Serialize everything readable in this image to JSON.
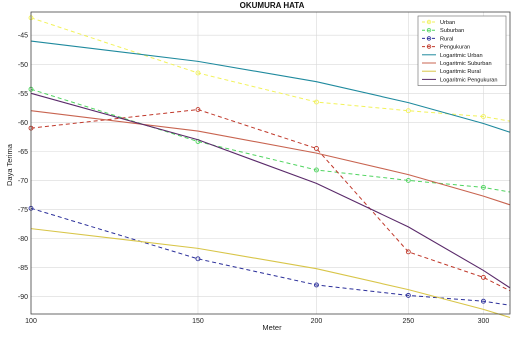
{
  "chart_data": {
    "type": "line",
    "title": "OKUMURA HATA",
    "xlabel": "Meter",
    "ylabel": "Daya Terima",
    "xlim": [
      100,
      320
    ],
    "ylim": [
      -93,
      -41
    ],
    "x_scale": "log",
    "grid": true,
    "legend_position": "top-right",
    "x_ticks": [
      100,
      150,
      200,
      250,
      300
    ],
    "x_tick_labels": [
      "100",
      "150",
      "200",
      "250",
      "300"
    ],
    "y_ticks": [
      -45,
      -50,
      -55,
      -60,
      -65,
      -70,
      -75,
      -80,
      -85,
      -90
    ],
    "y_tick_labels": [
      "-45",
      "-50",
      "-55",
      "-60",
      "-65",
      "-70",
      "-75",
      "-80",
      "-85",
      "-90"
    ],
    "series": [
      {
        "name": "Urban",
        "color": "#f2f25a",
        "style": "dashed-circle",
        "x": [
          100,
          150,
          200,
          250,
          300,
          320
        ],
        "y": [
          -42,
          -51.5,
          -56.5,
          -58,
          -59,
          -59.8
        ]
      },
      {
        "name": "Suburban",
        "color": "#4fd45f",
        "style": "dashed-circle",
        "x": [
          100,
          150,
          200,
          250,
          300,
          320
        ],
        "y": [
          -54.3,
          -63.3,
          -68.2,
          -70,
          -71.2,
          -72
        ]
      },
      {
        "name": "Rural",
        "color": "#2b2f9a",
        "style": "dashed-circle",
        "x": [
          100,
          150,
          200,
          250,
          300,
          320
        ],
        "y": [
          -74.8,
          -83.5,
          -88,
          -89.8,
          -90.8,
          -91.5
        ]
      },
      {
        "name": "Pengukuran",
        "color": "#c0392b",
        "style": "dashed-circle",
        "x": [
          100,
          150,
          200,
          250,
          300,
          320
        ],
        "y": [
          -61,
          -57.8,
          -64.5,
          -82.3,
          -86.7,
          -89
        ]
      },
      {
        "name": "Logaritmic Urban",
        "color": "#1f8a9e",
        "style": "solid",
        "x": [
          100,
          150,
          200,
          250,
          300,
          320
        ],
        "y": [
          -46,
          -49.5,
          -53,
          -56.6,
          -60.2,
          -61.7
        ]
      },
      {
        "name": "Logaritmic Suburban",
        "color": "#c86450",
        "style": "solid",
        "x": [
          100,
          150,
          200,
          250,
          300,
          320
        ],
        "y": [
          -58,
          -61.5,
          -65.3,
          -69,
          -72.7,
          -74.2
        ]
      },
      {
        "name": "Logaritmic Rural",
        "color": "#d8c548",
        "style": "solid",
        "x": [
          100,
          150,
          200,
          250,
          300,
          320
        ],
        "y": [
          -78.3,
          -81.7,
          -85.2,
          -88.8,
          -92.2,
          -93.6
        ]
      },
      {
        "name": "Logaritmic Pengukuran",
        "color": "#5a2a6a",
        "style": "solid",
        "x": [
          100,
          150,
          200,
          250,
          300,
          320
        ],
        "y": [
          -55,
          -63,
          -70.5,
          -78,
          -85.5,
          -88.5
        ]
      }
    ]
  }
}
